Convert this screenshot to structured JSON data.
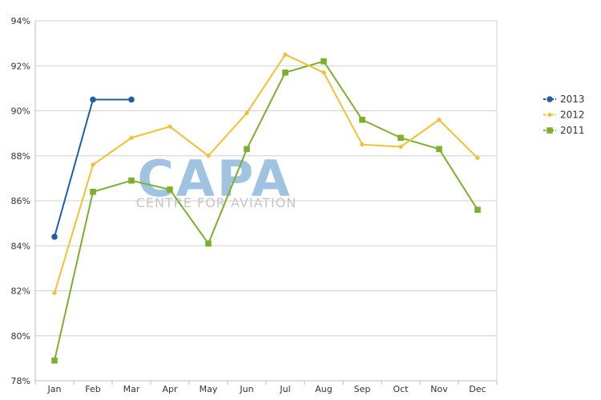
{
  "chart_data": {
    "type": "line",
    "categories": [
      "Jan",
      "Feb",
      "Mar",
      "Apr",
      "May",
      "Jun",
      "Jul",
      "Aug",
      "Sep",
      "Oct",
      "Nov",
      "Dec"
    ],
    "yticks": [
      "78%",
      "80%",
      "82%",
      "84%",
      "86%",
      "88%",
      "90%",
      "92%",
      "94%"
    ],
    "ylim": [
      78,
      94
    ],
    "ytick_values": [
      78,
      80,
      82,
      84,
      86,
      88,
      90,
      92,
      94
    ],
    "grid": "horizontal",
    "legend_placement": "right",
    "series": [
      {
        "name": "2013",
        "color": "#1f5ea8",
        "marker": "circle",
        "values": [
          84.4,
          90.5,
          90.5,
          null,
          null,
          null,
          null,
          null,
          null,
          null,
          null,
          null
        ]
      },
      {
        "name": "2012",
        "color": "#f2c033",
        "marker": "diamond",
        "values": [
          81.9,
          87.6,
          88.8,
          89.3,
          88.0,
          89.9,
          92.5,
          91.7,
          88.5,
          88.4,
          89.6,
          87.9
        ]
      },
      {
        "name": "2011",
        "color": "#7cb02c",
        "marker": "square",
        "values": [
          78.9,
          86.4,
          86.9,
          86.5,
          84.1,
          88.3,
          91.7,
          92.2,
          89.6,
          88.8,
          88.3,
          85.6
        ]
      }
    ]
  },
  "watermark": {
    "main": "CAPA",
    "sub": "CENTRE FOR AVIATION"
  }
}
